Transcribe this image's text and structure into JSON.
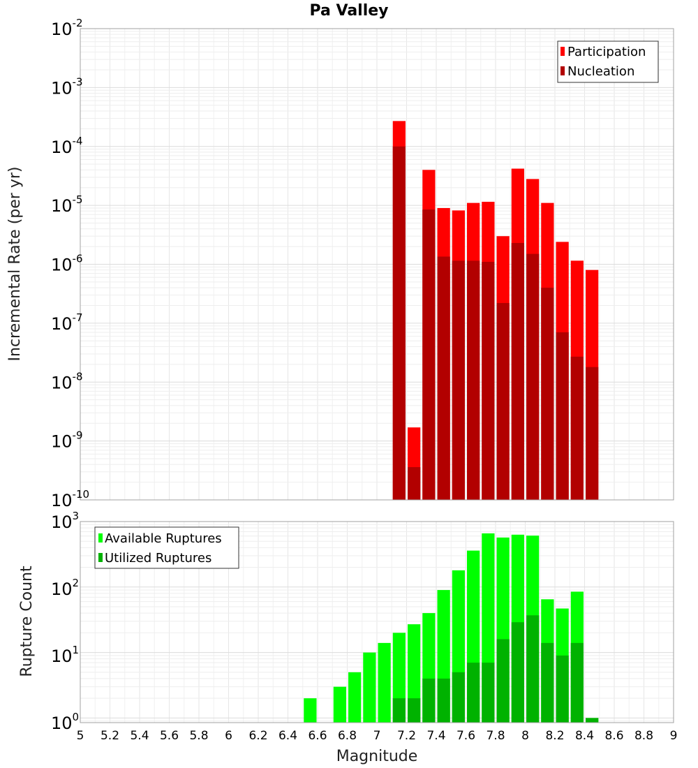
{
  "chart_data": [
    {
      "type": "bar",
      "title": "Pa Valley",
      "xlabel": "",
      "ylabel": "Incremental Rate (per yr)",
      "yscale": "log",
      "ylim": [
        1e-10,
        0.01
      ],
      "xlim": [
        5,
        9
      ],
      "grid": true,
      "legend_position": "top-right",
      "x": [
        7.15,
        7.25,
        7.35,
        7.45,
        7.55,
        7.65,
        7.75,
        7.85,
        7.95,
        8.05,
        8.15,
        8.25,
        8.35,
        8.45
      ],
      "series": [
        {
          "name": "Participation",
          "color": "#ff0000",
          "values": [
            0.00027,
            1.7e-09,
            4e-05,
            9e-06,
            8.2e-06,
            1.1e-05,
            1.15e-05,
            3e-06,
            4.2e-05,
            2.8e-05,
            1.1e-05,
            2.4e-06,
            1.15e-06,
            8e-07
          ]
        },
        {
          "name": "Nucleation",
          "color": "#b20000",
          "values": [
            0.0001,
            3.6e-10,
            8.5e-06,
            1.35e-06,
            1.15e-06,
            1.15e-06,
            1.1e-06,
            2.2e-07,
            2.3e-06,
            1.5e-06,
            4e-07,
            7e-08,
            2.7e-08,
            1.8e-08
          ]
        }
      ]
    },
    {
      "type": "bar",
      "title": "",
      "xlabel": "Magnitude",
      "ylabel": "Rupture Count",
      "yscale": "log",
      "ylim": [
        0.85,
        1000
      ],
      "xlim": [
        5,
        9
      ],
      "grid": true,
      "legend_position": "top-left",
      "x": [
        6.55,
        6.75,
        6.85,
        6.95,
        7.05,
        7.15,
        7.25,
        7.35,
        7.45,
        7.55,
        7.65,
        7.75,
        7.85,
        7.95,
        8.05,
        8.15,
        8.25,
        8.35,
        8.45
      ],
      "series": [
        {
          "name": "Available Ruptures",
          "color": "#00ff00",
          "values": [
            2,
            3,
            5,
            10,
            14,
            20,
            27,
            40,
            90,
            180,
            360,
            660,
            570,
            630,
            610,
            65,
            47,
            85,
            1
          ]
        },
        {
          "name": "Utilized Ruptures",
          "color": "#00b200",
          "values": [
            0,
            0,
            0,
            0,
            0,
            2,
            2,
            4,
            4,
            5,
            7,
            7,
            16,
            29,
            37,
            14,
            9,
            14,
            1
          ]
        }
      ]
    }
  ],
  "x_ticks": [
    "5",
    "5.2",
    "5.4",
    "5.6",
    "5.8",
    "6",
    "6.2",
    "6.4",
    "6.6",
    "6.8",
    "7",
    "7.2",
    "7.4",
    "7.6",
    "7.8",
    "8",
    "8.2",
    "8.4",
    "8.6",
    "8.8",
    "9"
  ],
  "top_y_ticks": [
    "-10",
    "-9",
    "-8",
    "-7",
    "-6",
    "-5",
    "-4",
    "-3",
    "-2"
  ],
  "bottom_y_ticks": [
    "0",
    "1",
    "2",
    "3"
  ]
}
